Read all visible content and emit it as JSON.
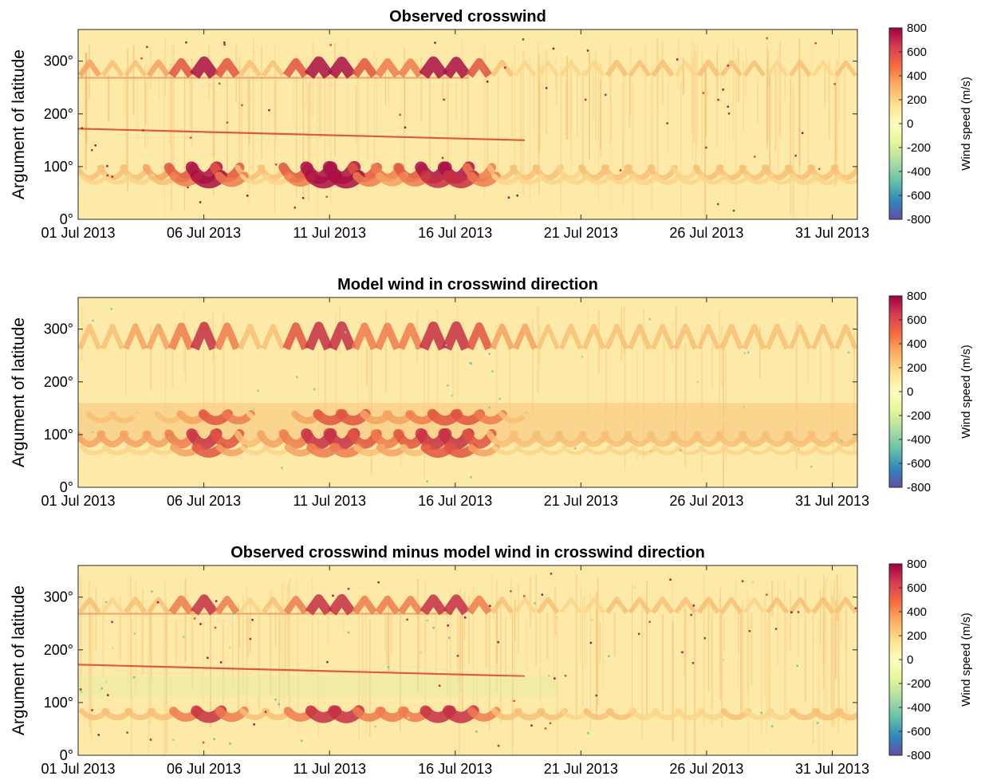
{
  "chart_data": [
    {
      "type": "heatmap",
      "title": "Observed crosswind",
      "ylabel": "Argument of latitude",
      "xlabel": "",
      "xlim": [
        "2013-07-01",
        "2013-08-01"
      ],
      "x_tick_labels": [
        "01 Jul 2013",
        "06 Jul 2013",
        "11 Jul 2013",
        "16 Jul 2013",
        "21 Jul 2013",
        "26 Jul 2013",
        "31 Jul 2013"
      ],
      "ylim": [
        0,
        360
      ],
      "y_tick_labels": [
        "0°",
        "100°",
        "200°",
        "300°"
      ],
      "colorbar": {
        "label": "Wind speed (m/s)",
        "range": [
          -800,
          800
        ],
        "tick_labels": [
          "800",
          "600",
          "400",
          "200",
          "0",
          "-200",
          "-400",
          "-600",
          "-800"
        ]
      }
    },
    {
      "type": "heatmap",
      "title": "Model wind in crosswind direction",
      "ylabel": "Argument of latitude",
      "xlabel": "",
      "xlim": [
        "2013-07-01",
        "2013-08-01"
      ],
      "x_tick_labels": [
        "01 Jul 2013",
        "06 Jul 2013",
        "11 Jul 2013",
        "16 Jul 2013",
        "21 Jul 2013",
        "26 Jul 2013",
        "31 Jul 2013"
      ],
      "ylim": [
        0,
        360
      ],
      "y_tick_labels": [
        "0°",
        "100°",
        "200°",
        "300°"
      ],
      "colorbar": {
        "label": "Wind speed (m/s)",
        "range": [
          -800,
          800
        ],
        "tick_labels": [
          "800",
          "600",
          "400",
          "200",
          "0",
          "-200",
          "-400",
          "-600",
          "-800"
        ]
      }
    },
    {
      "type": "heatmap",
      "title": "Observed crosswind minus model wind in crosswind direction",
      "ylabel": "Argument of latitude",
      "xlabel": "",
      "xlim": [
        "2013-07-01",
        "2013-08-01"
      ],
      "x_tick_labels": [
        "01 Jul 2013",
        "06 Jul 2013",
        "11 Jul 2013",
        "16 Jul 2013",
        "21 Jul 2013",
        "26 Jul 2013",
        "31 Jul 2013"
      ],
      "ylim": [
        0,
        360
      ],
      "y_tick_labels": [
        "0°",
        "100°",
        "200°",
        "300°"
      ],
      "colorbar": {
        "label": "Wind speed (m/s)",
        "range": [
          -800,
          800
        ],
        "tick_labels": [
          "800",
          "600",
          "400",
          "200",
          "0",
          "-200",
          "-400",
          "-600",
          "-800"
        ]
      }
    }
  ],
  "colormap_stops": [
    "#5e4fa2",
    "#3288bd",
    "#66c2a5",
    "#abdda4",
    "#e6f598",
    "#ffffbf",
    "#fee08b",
    "#fdae61",
    "#f46d43",
    "#d53e4f",
    "#9e0142"
  ],
  "background_color": "#fdeaa8"
}
